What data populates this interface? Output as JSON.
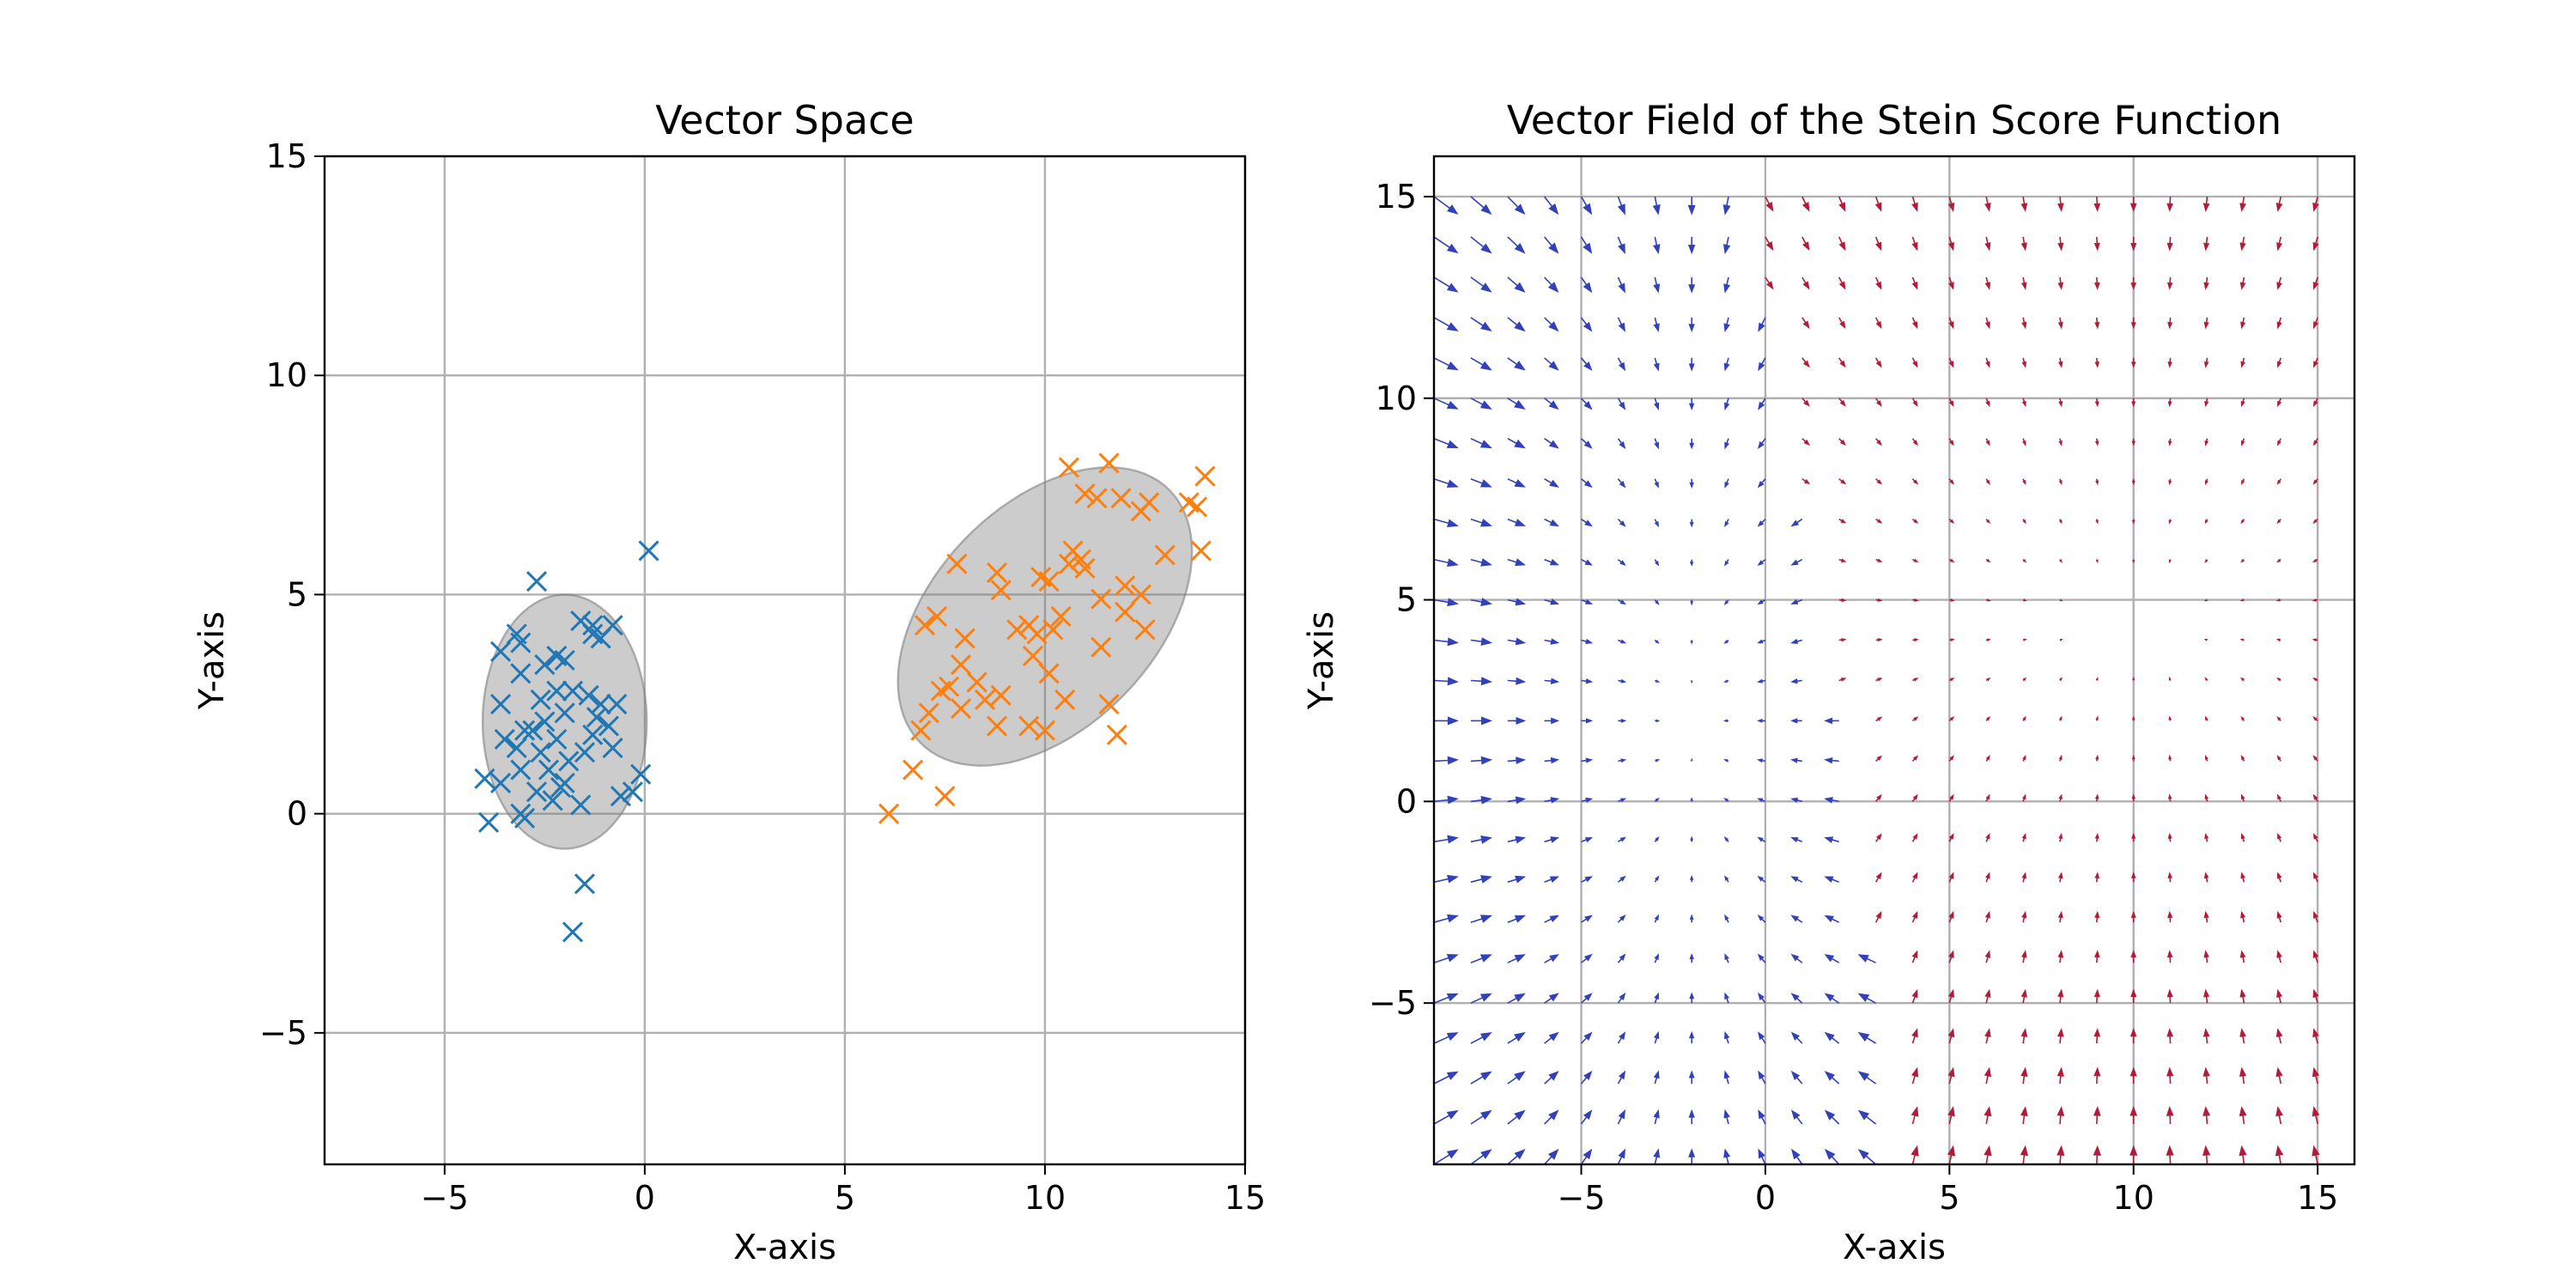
{
  "chart_data": [
    {
      "type": "scatter",
      "title": "Vector Space",
      "xlabel": "X-axis",
      "ylabel": "Y-axis",
      "xlim": [
        -8,
        15
      ],
      "ylim": [
        -8,
        15
      ],
      "xticks": [
        -5,
        0,
        5,
        10,
        15
      ],
      "yticks": [
        -5,
        0,
        5,
        10,
        15
      ],
      "xtick_labels": [
        "−5",
        "0",
        "5",
        "10",
        "15"
      ],
      "ytick_labels": [
        "−5",
        "0",
        "5",
        "10",
        "15"
      ],
      "grid": true,
      "marker": "x",
      "series": [
        {
          "color": "#1f77b4",
          "points": [
            [
              0.1,
              6.0
            ],
            [
              -2.7,
              5.3
            ],
            [
              -3.2,
              4.1
            ],
            [
              -3.1,
              3.9
            ],
            [
              -3.6,
              3.7
            ],
            [
              -1.6,
              4.4
            ],
            [
              -1.3,
              4.3
            ],
            [
              -0.8,
              4.3
            ],
            [
              -1.3,
              4.1
            ],
            [
              -1.1,
              4.0
            ],
            [
              -2.2,
              3.6
            ],
            [
              -2.0,
              3.5
            ],
            [
              -2.5,
              3.4
            ],
            [
              -3.1,
              3.2
            ],
            [
              -1.8,
              2.8
            ],
            [
              -2.2,
              2.8
            ],
            [
              -1.4,
              2.7
            ],
            [
              -2.6,
              2.6
            ],
            [
              -3.6,
              2.5
            ],
            [
              -1.1,
              2.5
            ],
            [
              -0.7,
              2.5
            ],
            [
              -2.0,
              2.3
            ],
            [
              -1.2,
              2.2
            ],
            [
              -2.5,
              2.1
            ],
            [
              -0.9,
              2.0
            ],
            [
              -3.0,
              1.9
            ],
            [
              -2.8,
              1.9
            ],
            [
              -1.3,
              1.8
            ],
            [
              -3.5,
              1.7
            ],
            [
              -2.2,
              1.7
            ],
            [
              -3.2,
              1.5
            ],
            [
              -2.6,
              1.4
            ],
            [
              -1.5,
              1.4
            ],
            [
              -0.8,
              1.5
            ],
            [
              -1.9,
              1.2
            ],
            [
              -3.1,
              1.0
            ],
            [
              -2.4,
              1.0
            ],
            [
              -0.1,
              0.9
            ],
            [
              -4.0,
              0.8
            ],
            [
              -3.6,
              0.7
            ],
            [
              -2.0,
              0.7
            ],
            [
              -2.1,
              0.6
            ],
            [
              -2.7,
              0.5
            ],
            [
              -2.3,
              0.3
            ],
            [
              -0.6,
              0.4
            ],
            [
              -0.3,
              0.5
            ],
            [
              -1.6,
              0.2
            ],
            [
              -3.1,
              0.0
            ],
            [
              -3.0,
              -0.1
            ],
            [
              -3.9,
              -0.2
            ],
            [
              -1.5,
              -1.6
            ],
            [
              -1.8,
              -2.7
            ]
          ]
        },
        {
          "color": "#ff7f0e",
          "points": [
            [
              10.6,
              7.9
            ],
            [
              11.6,
              8.0
            ],
            [
              14.0,
              7.7
            ],
            [
              11.0,
              7.3
            ],
            [
              11.3,
              7.2
            ],
            [
              11.9,
              7.2
            ],
            [
              12.6,
              7.1
            ],
            [
              13.6,
              7.1
            ],
            [
              13.8,
              7.0
            ],
            [
              12.4,
              6.9
            ],
            [
              10.7,
              6.0
            ],
            [
              10.9,
              5.8
            ],
            [
              10.6,
              5.7
            ],
            [
              11.0,
              5.6
            ],
            [
              13.0,
              5.9
            ],
            [
              13.9,
              6.0
            ],
            [
              7.8,
              5.7
            ],
            [
              8.8,
              5.5
            ],
            [
              9.9,
              5.4
            ],
            [
              10.1,
              5.3
            ],
            [
              12.0,
              5.2
            ],
            [
              8.9,
              5.1
            ],
            [
              12.4,
              5.0
            ],
            [
              11.4,
              4.9
            ],
            [
              12.0,
              4.6
            ],
            [
              10.4,
              4.5
            ],
            [
              7.3,
              4.5
            ],
            [
              7.0,
              4.3
            ],
            [
              9.6,
              4.3
            ],
            [
              10.2,
              4.2
            ],
            [
              9.3,
              4.2
            ],
            [
              12.5,
              4.2
            ],
            [
              9.8,
              4.1
            ],
            [
              8.0,
              4.0
            ],
            [
              11.4,
              3.8
            ],
            [
              9.7,
              3.6
            ],
            [
              7.9,
              3.4
            ],
            [
              10.1,
              3.2
            ],
            [
              8.3,
              3.0
            ],
            [
              7.6,
              2.9
            ],
            [
              7.4,
              2.8
            ],
            [
              8.9,
              2.7
            ],
            [
              8.5,
              2.6
            ],
            [
              10.5,
              2.6
            ],
            [
              11.6,
              2.5
            ],
            [
              7.1,
              2.3
            ],
            [
              7.9,
              2.4
            ],
            [
              6.9,
              1.9
            ],
            [
              8.8,
              2.0
            ],
            [
              9.6,
              2.0
            ],
            [
              10.0,
              1.9
            ],
            [
              11.8,
              1.8
            ],
            [
              6.7,
              1.0
            ],
            [
              7.5,
              0.4
            ],
            [
              6.1,
              0.0
            ]
          ]
        }
      ],
      "ellipses": [
        {
          "center": [
            -2.0,
            2.1
          ],
          "width": 4.1,
          "height": 5.8,
          "angle": 0,
          "color": "#808080",
          "alpha": 0.4
        },
        {
          "center": [
            10.0,
            4.5
          ],
          "width": 8.5,
          "height": 5.3,
          "angle": 40,
          "color": "#808080",
          "alpha": 0.4
        }
      ]
    },
    {
      "type": "quiver",
      "title": "Vector Field of the Stein Score Function",
      "xlabel": "X-axis",
      "ylabel": "Y-axis",
      "xlim": [
        -9,
        16
      ],
      "ylim": [
        -9,
        16
      ],
      "xticks": [
        -5,
        0,
        5,
        10,
        15
      ],
      "yticks": [
        -5,
        0,
        5,
        10,
        15
      ],
      "xtick_labels": [
        "−5",
        "0",
        "5",
        "10",
        "15"
      ],
      "ytick_labels": [
        "−5",
        "0",
        "5",
        "10",
        "15"
      ],
      "grid": true,
      "grid_x": [
        -9,
        15,
        25
      ],
      "grid_y": [
        -9,
        15,
        25
      ],
      "clusters": [
        {
          "color": "#3341b8",
          "mean": [
            -2,
            2
          ],
          "var": [
            1.1,
            2.8
          ]
        },
        {
          "color": "#b31b3b",
          "mean": [
            10,
            4.5
          ],
          "var": [
            5,
            2.8
          ]
        }
      ]
    }
  ]
}
